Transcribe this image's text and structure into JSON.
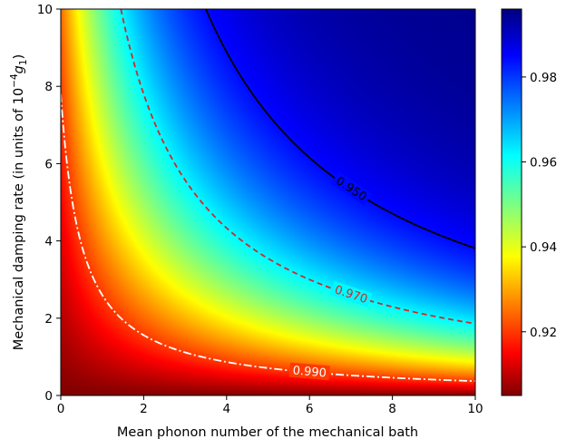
{
  "chart_data": {
    "type": "heatmap",
    "title": "",
    "xlabel": "Mean phonon number of the mechanical bath",
    "ylabel_main": "Mechanical damping rate (in units of 10",
    "ylabel_sup": "−4",
    "ylabel_sym": "g",
    "ylabel_sub": "1",
    "ylabel_close": ")",
    "xlim": [
      0,
      10
    ],
    "ylim": [
      0,
      10
    ],
    "xticks": [
      "0",
      "2",
      "4",
      "6",
      "8",
      "10"
    ],
    "yticks": [
      "0",
      "2",
      "4",
      "6",
      "8",
      "10"
    ],
    "colorbar": {
      "range": [
        0.905,
        0.996
      ],
      "ticks": [
        "0.92",
        "0.94",
        "0.96",
        "0.98"
      ],
      "colormap": "jet"
    },
    "grid": false,
    "contours": [
      {
        "level": 0.95,
        "label": "0.950",
        "color": "#000000",
        "style": "solid",
        "k": 40,
        "label_at": [
          7.0,
          5.9
        ]
      },
      {
        "level": 0.97,
        "label": "0.970",
        "color": "#d62728",
        "style": "dashed",
        "k": 19.5,
        "label_at": [
          7.0,
          3.0
        ]
      },
      {
        "level": 0.99,
        "label": "0.990",
        "color": "#ffffff",
        "style": "dashdot",
        "k": 3.9,
        "label_at": [
          6.0,
          0.6
        ]
      }
    ]
  }
}
